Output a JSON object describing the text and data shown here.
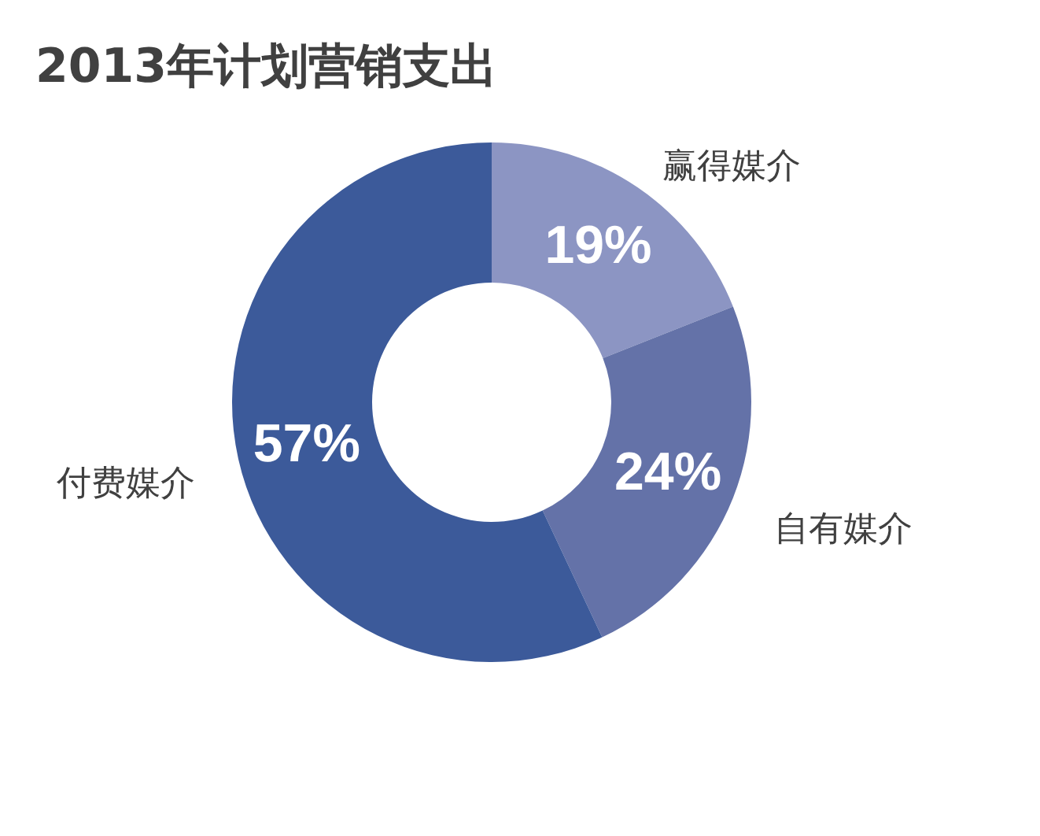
{
  "chart_data": {
    "type": "donut",
    "title": "2013年计划营销支出",
    "categories": [
      "赢得媒介",
      "自有媒介",
      "付费媒介"
    ],
    "values": [
      19,
      24,
      57
    ],
    "value_labels": [
      "19%",
      "24%",
      "57%"
    ],
    "colors": [
      "#8c95c3",
      "#6472a8",
      "#3c5a9a"
    ]
  }
}
